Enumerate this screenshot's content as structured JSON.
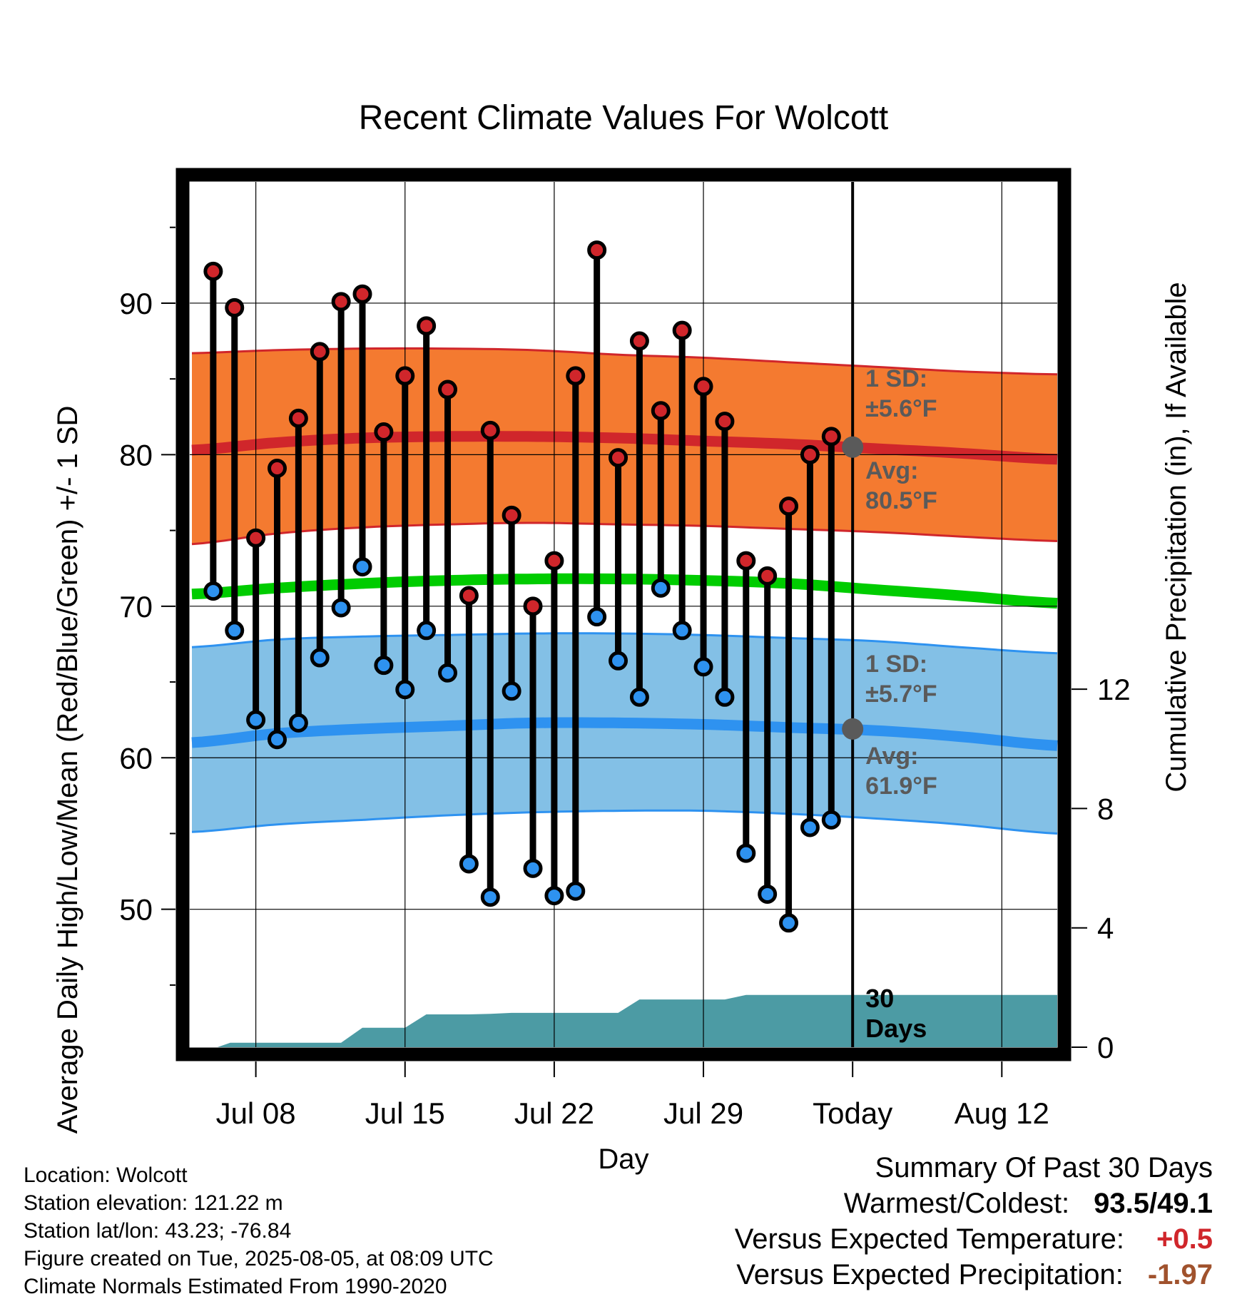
{
  "colors": {
    "high": "#d0262b",
    "high_band": "#f47a30",
    "low": "#2e92f0",
    "low_band": "#83c0e6",
    "mean": "#00cc00",
    "precip": "#4c9ba4",
    "avg_dot": "#5a5a5a",
    "frame": "#000000",
    "warm_text": "#d0262b",
    "precip_text": "#a0522d"
  },
  "chart_data": {
    "type": "line",
    "title": "Recent Climate Values For Wolcott",
    "xlabel": "Day",
    "ylabel": "Average Daily High/Low/Mean (Red/Blue/Green) +/- 1 SD",
    "ylabel_right": "Cumulative Precipitation (in), If Available",
    "x_tick_labels": [
      "Jul 08",
      "Jul 15",
      "Jul 22",
      "Jul 29",
      "Today",
      "Aug 12"
    ],
    "x_tick_days": [
      8,
      15,
      22,
      29,
      36,
      43
    ],
    "xlim": [
      4.9,
      45.6
    ],
    "ylim": [
      40.9,
      98.0
    ],
    "y_ticks": [
      50,
      60,
      70,
      80,
      90
    ],
    "y2lim": [
      0,
      29.0
    ],
    "y2_ticks": [
      0,
      4,
      8,
      12
    ],
    "today_day": 36,
    "daily": {
      "days": [
        6,
        7,
        8,
        9,
        10,
        11,
        12,
        13,
        14,
        15,
        16,
        17,
        18,
        19,
        20,
        21,
        22,
        23,
        24,
        25,
        26,
        27,
        28,
        29,
        30,
        31,
        32,
        33,
        34,
        35
      ],
      "high": [
        92.1,
        89.7,
        74.5,
        79.1,
        82.4,
        86.8,
        90.1,
        90.6,
        81.5,
        85.2,
        88.5,
        84.3,
        70.7,
        81.6,
        76.0,
        70.0,
        73.0,
        85.2,
        93.5,
        79.8,
        87.5,
        82.9,
        88.2,
        84.5,
        82.2,
        73.0,
        72.0,
        76.6,
        80.0,
        81.2
      ],
      "low": [
        71.0,
        68.4,
        62.5,
        61.2,
        62.3,
        66.6,
        69.9,
        72.6,
        66.1,
        64.5,
        68.4,
        65.6,
        53.0,
        50.8,
        64.4,
        52.7,
        50.9,
        51.2,
        69.3,
        66.4,
        64.0,
        71.2,
        68.4,
        66.0,
        64.0,
        53.7,
        51.0,
        49.1,
        55.4,
        55.9
      ]
    },
    "normals": {
      "days": [
        5,
        9,
        13,
        17,
        21,
        25,
        29,
        33,
        37,
        41,
        45.6
      ],
      "avg_high": [
        80.3,
        80.8,
        81.1,
        81.2,
        81.2,
        81.1,
        80.9,
        80.7,
        80.4,
        80.1,
        79.7
      ],
      "avg_high_upper": [
        86.7,
        86.9,
        87.0,
        87.0,
        86.9,
        86.6,
        86.4,
        86.1,
        85.8,
        85.5,
        85.3
      ],
      "avg_high_lower": [
        74.1,
        74.8,
        75.2,
        75.4,
        75.5,
        75.4,
        75.3,
        75.1,
        74.9,
        74.6,
        74.3
      ],
      "avg_low": [
        61.0,
        61.6,
        61.9,
        62.1,
        62.3,
        62.3,
        62.2,
        62.0,
        61.8,
        61.4,
        60.8
      ],
      "avg_low_upper": [
        67.3,
        67.8,
        68.0,
        68.1,
        68.2,
        68.2,
        68.1,
        67.9,
        67.7,
        67.3,
        66.9
      ],
      "avg_low_lower": [
        55.1,
        55.6,
        55.9,
        56.2,
        56.4,
        56.5,
        56.5,
        56.3,
        56.0,
        55.6,
        55.0
      ],
      "avg_mean": [
        70.8,
        71.2,
        71.5,
        71.7,
        71.8,
        71.8,
        71.7,
        71.5,
        71.1,
        70.7,
        70.2
      ]
    },
    "precip_cumulative": {
      "days": [
        6.2,
        6.8,
        9,
        10,
        11,
        12,
        13,
        14,
        15,
        16,
        17,
        18,
        19,
        20,
        21,
        22,
        23,
        24,
        25,
        26,
        27,
        28,
        29,
        30,
        31,
        32,
        33,
        34,
        35,
        36,
        37,
        38,
        39,
        40,
        41,
        42,
        43,
        44,
        45,
        45.6
      ],
      "values": [
        0,
        0.15,
        0.15,
        0.15,
        0.15,
        0.15,
        0.65,
        0.65,
        0.65,
        1.1,
        1.1,
        1.1,
        1.12,
        1.15,
        1.15,
        1.15,
        1.15,
        1.15,
        1.15,
        1.6,
        1.6,
        1.6,
        1.6,
        1.6,
        1.75,
        1.75,
        1.75,
        1.75,
        1.75,
        1.75,
        1.75,
        1.75,
        1.75,
        1.75,
        1.75,
        1.75,
        1.75,
        1.75,
        1.75,
        1.75
      ]
    },
    "annotations": {
      "high_sd": [
        "1 SD:",
        "±5.6°F"
      ],
      "high_avg": [
        "Avg:",
        "80.5°F"
      ],
      "low_sd": [
        "1 SD:",
        "±5.7°F"
      ],
      "low_avg": [
        "Avg:",
        "61.9°F"
      ],
      "today_high_avg": 80.5,
      "today_low_avg": 61.9,
      "days_window": [
        "30",
        "Days"
      ]
    },
    "grid": true,
    "legend": "none"
  },
  "metadata_text": {
    "location": "Location: Wolcott",
    "elevation": "Station elevation: 121.22 m",
    "latlon": "Station lat/lon: 43.23; -76.84",
    "created": "Figure created on Tue, 2025-08-05, at 08:09 UTC",
    "normals": "Climate Normals Estimated From 1990-2020"
  },
  "summary": {
    "title": "Summary Of Past 30 Days",
    "warmest_coldest_label": "Warmest/Coldest:",
    "warmest_coldest_value": "93.5/49.1",
    "temp_label": "Versus Expected Temperature:",
    "temp_value": "+0.5",
    "precip_label": "Versus Expected Precipitation:",
    "precip_value": "-1.97"
  }
}
